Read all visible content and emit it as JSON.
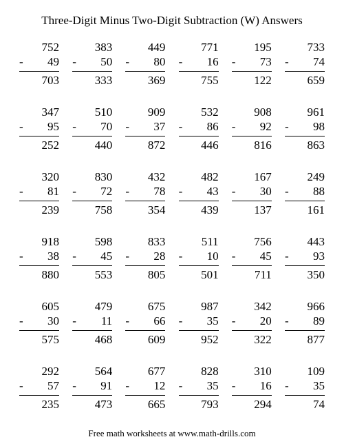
{
  "title": "Three-Digit Minus Two-Digit Subtraction (W) Answers",
  "footer": "Free math worksheets at www.math-drills.com",
  "minus_sign": "-",
  "text_color": "#000000",
  "background_color": "#ffffff",
  "rule_color": "#000000",
  "font_family": "Times New Roman",
  "title_fontsize": 17,
  "problem_fontsize": 17,
  "footer_fontsize": 13,
  "columns": 6,
  "rows": 6,
  "problems": [
    [
      {
        "m": "752",
        "s": "49",
        "a": "703"
      },
      {
        "m": "383",
        "s": "50",
        "a": "333"
      },
      {
        "m": "449",
        "s": "80",
        "a": "369"
      },
      {
        "m": "771",
        "s": "16",
        "a": "755"
      },
      {
        "m": "195",
        "s": "73",
        "a": "122"
      },
      {
        "m": "733",
        "s": "74",
        "a": "659"
      }
    ],
    [
      {
        "m": "347",
        "s": "95",
        "a": "252"
      },
      {
        "m": "510",
        "s": "70",
        "a": "440"
      },
      {
        "m": "909",
        "s": "37",
        "a": "872"
      },
      {
        "m": "532",
        "s": "86",
        "a": "446"
      },
      {
        "m": "908",
        "s": "92",
        "a": "816"
      },
      {
        "m": "961",
        "s": "98",
        "a": "863"
      }
    ],
    [
      {
        "m": "320",
        "s": "81",
        "a": "239"
      },
      {
        "m": "830",
        "s": "72",
        "a": "758"
      },
      {
        "m": "432",
        "s": "78",
        "a": "354"
      },
      {
        "m": "482",
        "s": "43",
        "a": "439"
      },
      {
        "m": "167",
        "s": "30",
        "a": "137"
      },
      {
        "m": "249",
        "s": "88",
        "a": "161"
      }
    ],
    [
      {
        "m": "918",
        "s": "38",
        "a": "880"
      },
      {
        "m": "598",
        "s": "45",
        "a": "553"
      },
      {
        "m": "833",
        "s": "28",
        "a": "805"
      },
      {
        "m": "511",
        "s": "10",
        "a": "501"
      },
      {
        "m": "756",
        "s": "45",
        "a": "711"
      },
      {
        "m": "443",
        "s": "93",
        "a": "350"
      }
    ],
    [
      {
        "m": "605",
        "s": "30",
        "a": "575"
      },
      {
        "m": "479",
        "s": "11",
        "a": "468"
      },
      {
        "m": "675",
        "s": "66",
        "a": "609"
      },
      {
        "m": "987",
        "s": "35",
        "a": "952"
      },
      {
        "m": "342",
        "s": "20",
        "a": "322"
      },
      {
        "m": "966",
        "s": "89",
        "a": "877"
      }
    ],
    [
      {
        "m": "292",
        "s": "57",
        "a": "235"
      },
      {
        "m": "564",
        "s": "91",
        "a": "473"
      },
      {
        "m": "677",
        "s": "12",
        "a": "665"
      },
      {
        "m": "828",
        "s": "35",
        "a": "793"
      },
      {
        "m": "310",
        "s": "16",
        "a": "294"
      },
      {
        "m": "109",
        "s": "35",
        "a": "74"
      }
    ]
  ]
}
